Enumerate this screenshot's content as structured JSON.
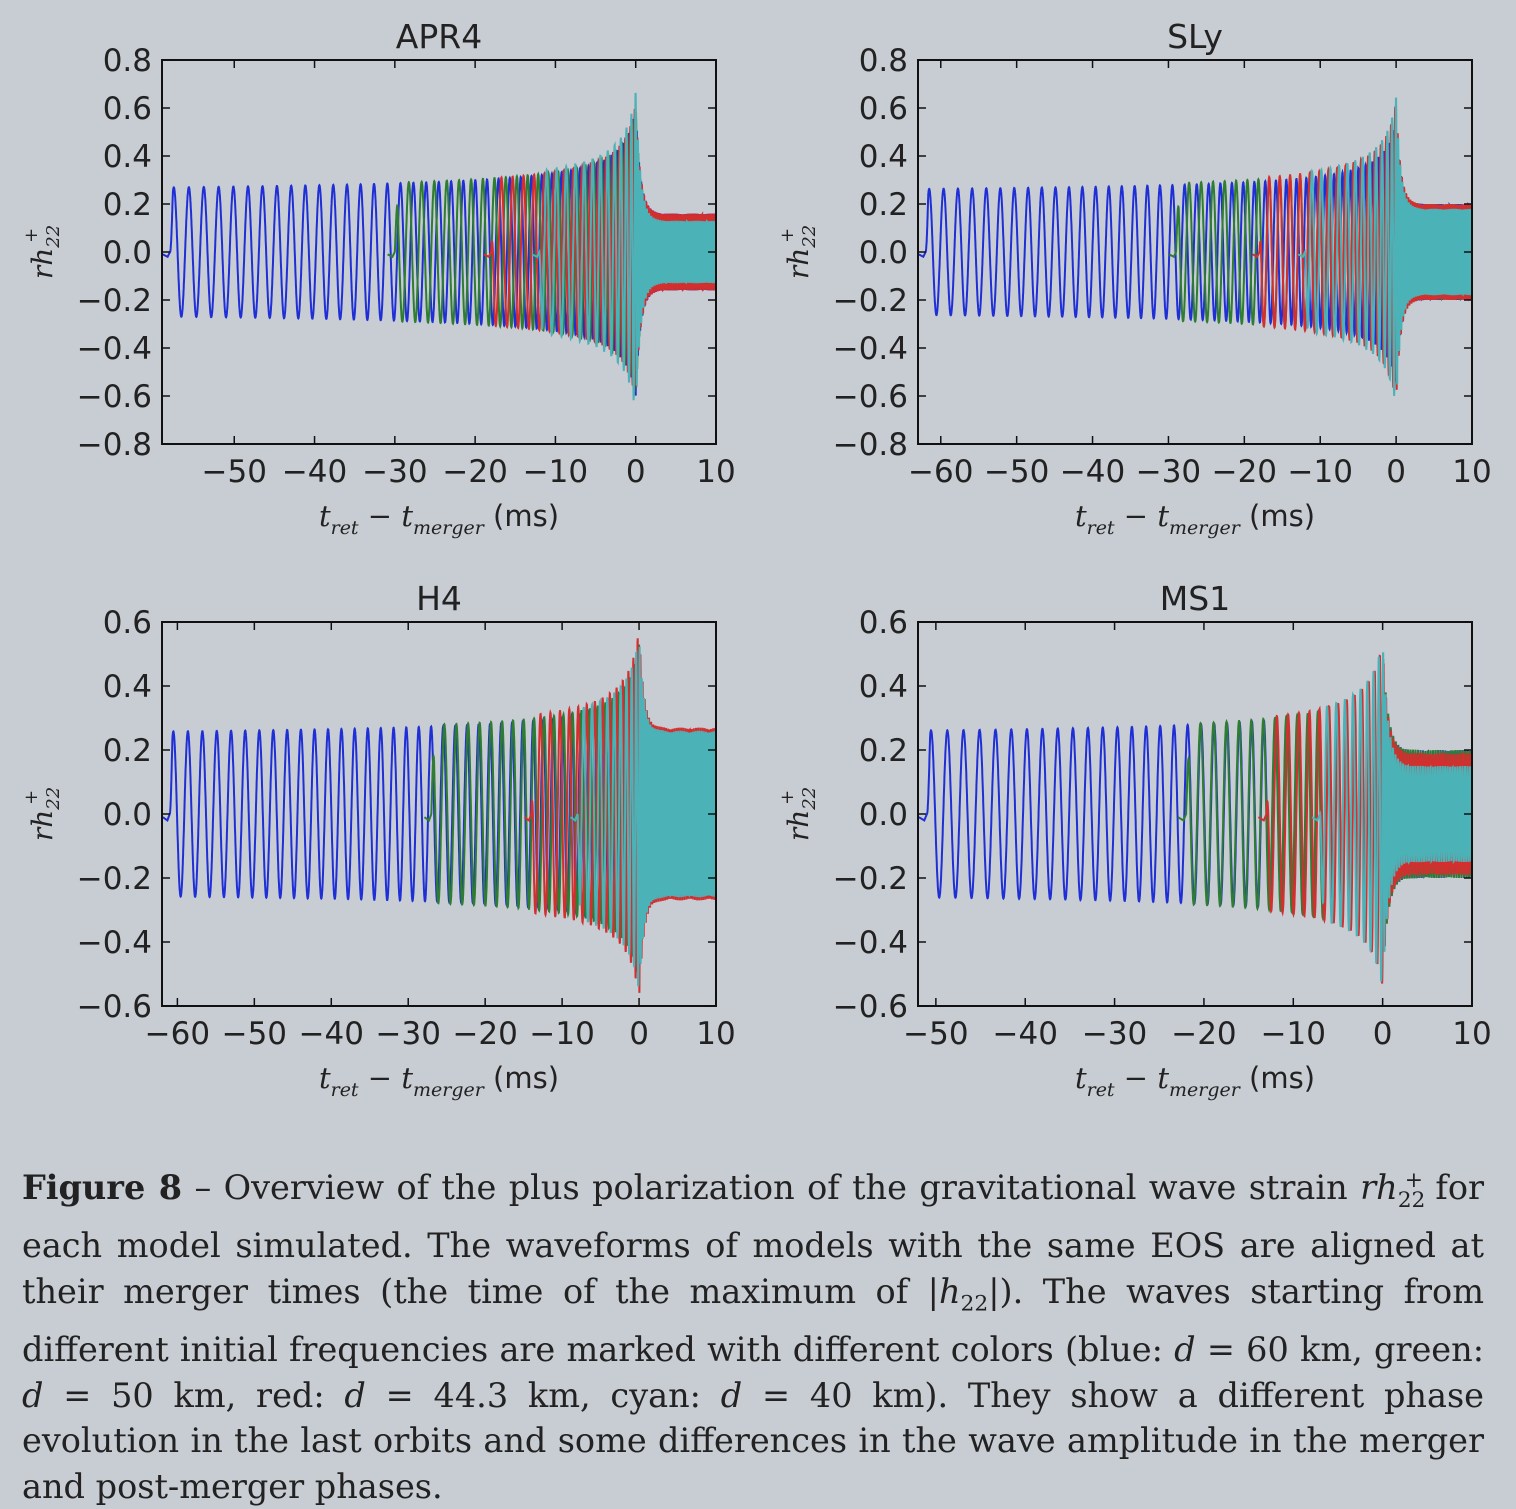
{
  "figure": {
    "label": "Figure 8",
    "dash": " – ",
    "caption_parts": [
      "Overview of the plus polarization of the gravitational wave strain ",
      "rh",
      "22",
      "+",
      " for each model simulated. The waveforms of models with the same EOS are aligned at their merger times (the time of the maximum of |",
      "h",
      "22",
      "|). The waves starting from different initial frequencies are marked with different colors (blue: ",
      "d",
      " = 60 km, green: ",
      "d",
      " = 50 km, red: ",
      "d",
      " = 44.3 km, cyan: ",
      "d",
      " = 40 km). They show a different phase evolution in the last orbits and some differences in the wave amplitude in the merger and post-merger phases."
    ]
  },
  "colors": {
    "blue": "#1f2fd6",
    "green": "#2e7d32",
    "red": "#d32f2f",
    "cyan": "#4bb3b8",
    "background": "#c8ccd3"
  },
  "axis_text": {
    "ylabel_main": "rh",
    "ylabel_sub": "22",
    "ylabel_sup": "+",
    "xlabel_t1": "t",
    "xlabel_sub1": "ret",
    "xlabel_minus": " − ",
    "xlabel_t2": "t",
    "xlabel_sub2": "merger",
    "xlabel_unit": " (ms)"
  },
  "chart_data": [
    {
      "type": "line",
      "title": "APR4",
      "xlim": [
        -59,
        10
      ],
      "ylim": [
        -0.8,
        0.8
      ],
      "xticks": [
        -50,
        -40,
        -30,
        -20,
        -10,
        0,
        10
      ],
      "xtick_labels": [
        "−50",
        "−40",
        "−30",
        "−20",
        "−10",
        "0",
        "10"
      ],
      "yticks": [
        -0.8,
        -0.6,
        -0.4,
        -0.2,
        0.0,
        0.2,
        0.4,
        0.6,
        0.8
      ],
      "ytick_labels": [
        "−0.8",
        "−0.6",
        "−0.4",
        "−0.2",
        "0.0",
        "0.2",
        "0.4",
        "0.6",
        "0.8"
      ],
      "series": [
        {
          "color": "blue",
          "start": -58,
          "merger_amp": 0.6,
          "post_amp": 0.16
        },
        {
          "color": "green",
          "start": -30,
          "merger_amp": 0.62,
          "post_amp": 0.12
        },
        {
          "color": "red",
          "start": -18,
          "merger_amp": 0.62,
          "post_amp": 0.16
        },
        {
          "color": "cyan",
          "start": -12,
          "merger_amp": 0.67,
          "post_amp": 0.13
        }
      ]
    },
    {
      "type": "line",
      "title": "SLy",
      "xlim": [
        -63,
        10
      ],
      "ylim": [
        -0.8,
        0.8
      ],
      "xticks": [
        -60,
        -50,
        -40,
        -30,
        -20,
        -10,
        0,
        10
      ],
      "xtick_labels": [
        "−60",
        "−50",
        "−40",
        "−30",
        "−20",
        "−10",
        "0",
        "10"
      ],
      "yticks": [
        -0.8,
        -0.6,
        -0.4,
        -0.2,
        0.0,
        0.2,
        0.4,
        0.6,
        0.8
      ],
      "ytick_labels": [
        "−0.8",
        "−0.6",
        "−0.4",
        "−0.2",
        "0.0",
        "0.2",
        "0.4",
        "0.6",
        "0.8"
      ],
      "series": [
        {
          "color": "blue",
          "start": -62,
          "merger_amp": 0.55,
          "post_amp": 0.2
        },
        {
          "color": "green",
          "start": -29,
          "merger_amp": 0.6,
          "post_amp": 0.2
        },
        {
          "color": "red",
          "start": -18,
          "merger_amp": 0.63,
          "post_amp": 0.2
        },
        {
          "color": "cyan",
          "start": -12,
          "merger_amp": 0.65,
          "post_amp": 0.18
        }
      ]
    },
    {
      "type": "line",
      "title": "H4",
      "xlim": [
        -62,
        10
      ],
      "ylim": [
        -0.6,
        0.6
      ],
      "xticks": [
        -60,
        -50,
        -40,
        -30,
        -20,
        -10,
        0,
        10
      ],
      "xtick_labels": [
        "−60",
        "−50",
        "−40",
        "−30",
        "−20",
        "−10",
        "0",
        "10"
      ],
      "yticks": [
        -0.6,
        -0.4,
        -0.2,
        0.0,
        0.2,
        0.4,
        0.6
      ],
      "ytick_labels": [
        "−0.6",
        "−0.4",
        "−0.2",
        "0.0",
        "0.2",
        "0.4",
        "0.6"
      ],
      "series": [
        {
          "color": "blue",
          "start": -61,
          "merger_amp": 0.5,
          "post_amp": 0.25
        },
        {
          "color": "green",
          "start": -27,
          "merger_amp": 0.53,
          "post_amp": 0.25
        },
        {
          "color": "red",
          "start": -14,
          "merger_amp": 0.58,
          "post_amp": 0.27
        },
        {
          "color": "cyan",
          "start": -8,
          "merger_amp": 0.56,
          "post_amp": 0.26
        }
      ]
    },
    {
      "type": "line",
      "title": "MS1",
      "xlim": [
        -52,
        10
      ],
      "ylim": [
        -0.6,
        0.6
      ],
      "xticks": [
        -50,
        -40,
        -30,
        -20,
        -10,
        0,
        10
      ],
      "xtick_labels": [
        "−50",
        "−40",
        "−30",
        "−20",
        "−10",
        "0",
        "10"
      ],
      "yticks": [
        -0.6,
        -0.4,
        -0.2,
        0.0,
        0.2,
        0.4,
        0.6
      ],
      "ytick_labels": [
        "−0.6",
        "−0.4",
        "−0.2",
        "0.0",
        "0.2",
        "0.4",
        "0.6"
      ],
      "series": [
        {
          "color": "blue",
          "start": -51,
          "merger_amp": 0.5,
          "post_amp": 0.2
        },
        {
          "color": "green",
          "start": -22,
          "merger_amp": 0.52,
          "post_amp": 0.2
        },
        {
          "color": "red",
          "start": -13,
          "merger_amp": 0.54,
          "post_amp": 0.19
        },
        {
          "color": "cyan",
          "start": -7,
          "merger_amp": 0.55,
          "post_amp": 0.15
        }
      ]
    }
  ]
}
